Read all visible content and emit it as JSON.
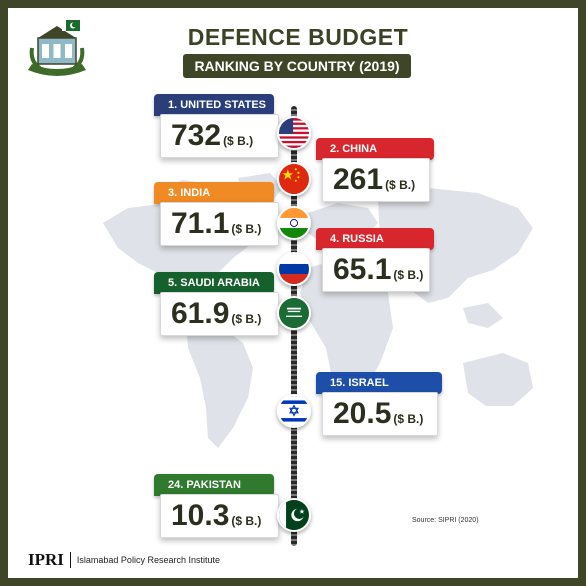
{
  "header": {
    "title": "DEFENCE BUDGET",
    "subtitle": "RANKING BY COUNTRY (2019)"
  },
  "unit": "($ B.)",
  "entries": [
    {
      "rank_label": "1. UNITED STATES",
      "value": "732",
      "side": "left",
      "color": "#2a3f7a",
      "flag": "us-flag-icon"
    },
    {
      "rank_label": "2. CHINA",
      "value": "261",
      "side": "right",
      "color": "#d7262e",
      "flag": "china-flag-icon"
    },
    {
      "rank_label": "3. INDIA",
      "value": "71.1",
      "side": "left",
      "color": "#f08a24",
      "flag": "india-flag-icon"
    },
    {
      "rank_label": "4. RUSSIA",
      "value": "65.1",
      "side": "right",
      "color": "#d7262e",
      "flag": "russia-flag-icon"
    },
    {
      "rank_label": "5. SAUDI ARABIA",
      "value": "61.9",
      "side": "left",
      "color": "#16602d",
      "flag": "saudi-flag-icon"
    },
    {
      "rank_label": "15. ISRAEL",
      "value": "20.5",
      "side": "right",
      "color": "#1e4fa8",
      "flag": "israel-flag-icon"
    },
    {
      "rank_label": "24. PAKISTAN",
      "value": "10.3",
      "side": "left",
      "color": "#2f7a2d",
      "flag": "pakistan-flag-icon"
    }
  ],
  "source": "Source: SIPRI (2020)",
  "footer": {
    "brand": "IPRI",
    "full_name": "Islamabad Policy Research Institute"
  },
  "colors": {
    "frame": "#3f4527",
    "map": "#dfe2e8"
  }
}
